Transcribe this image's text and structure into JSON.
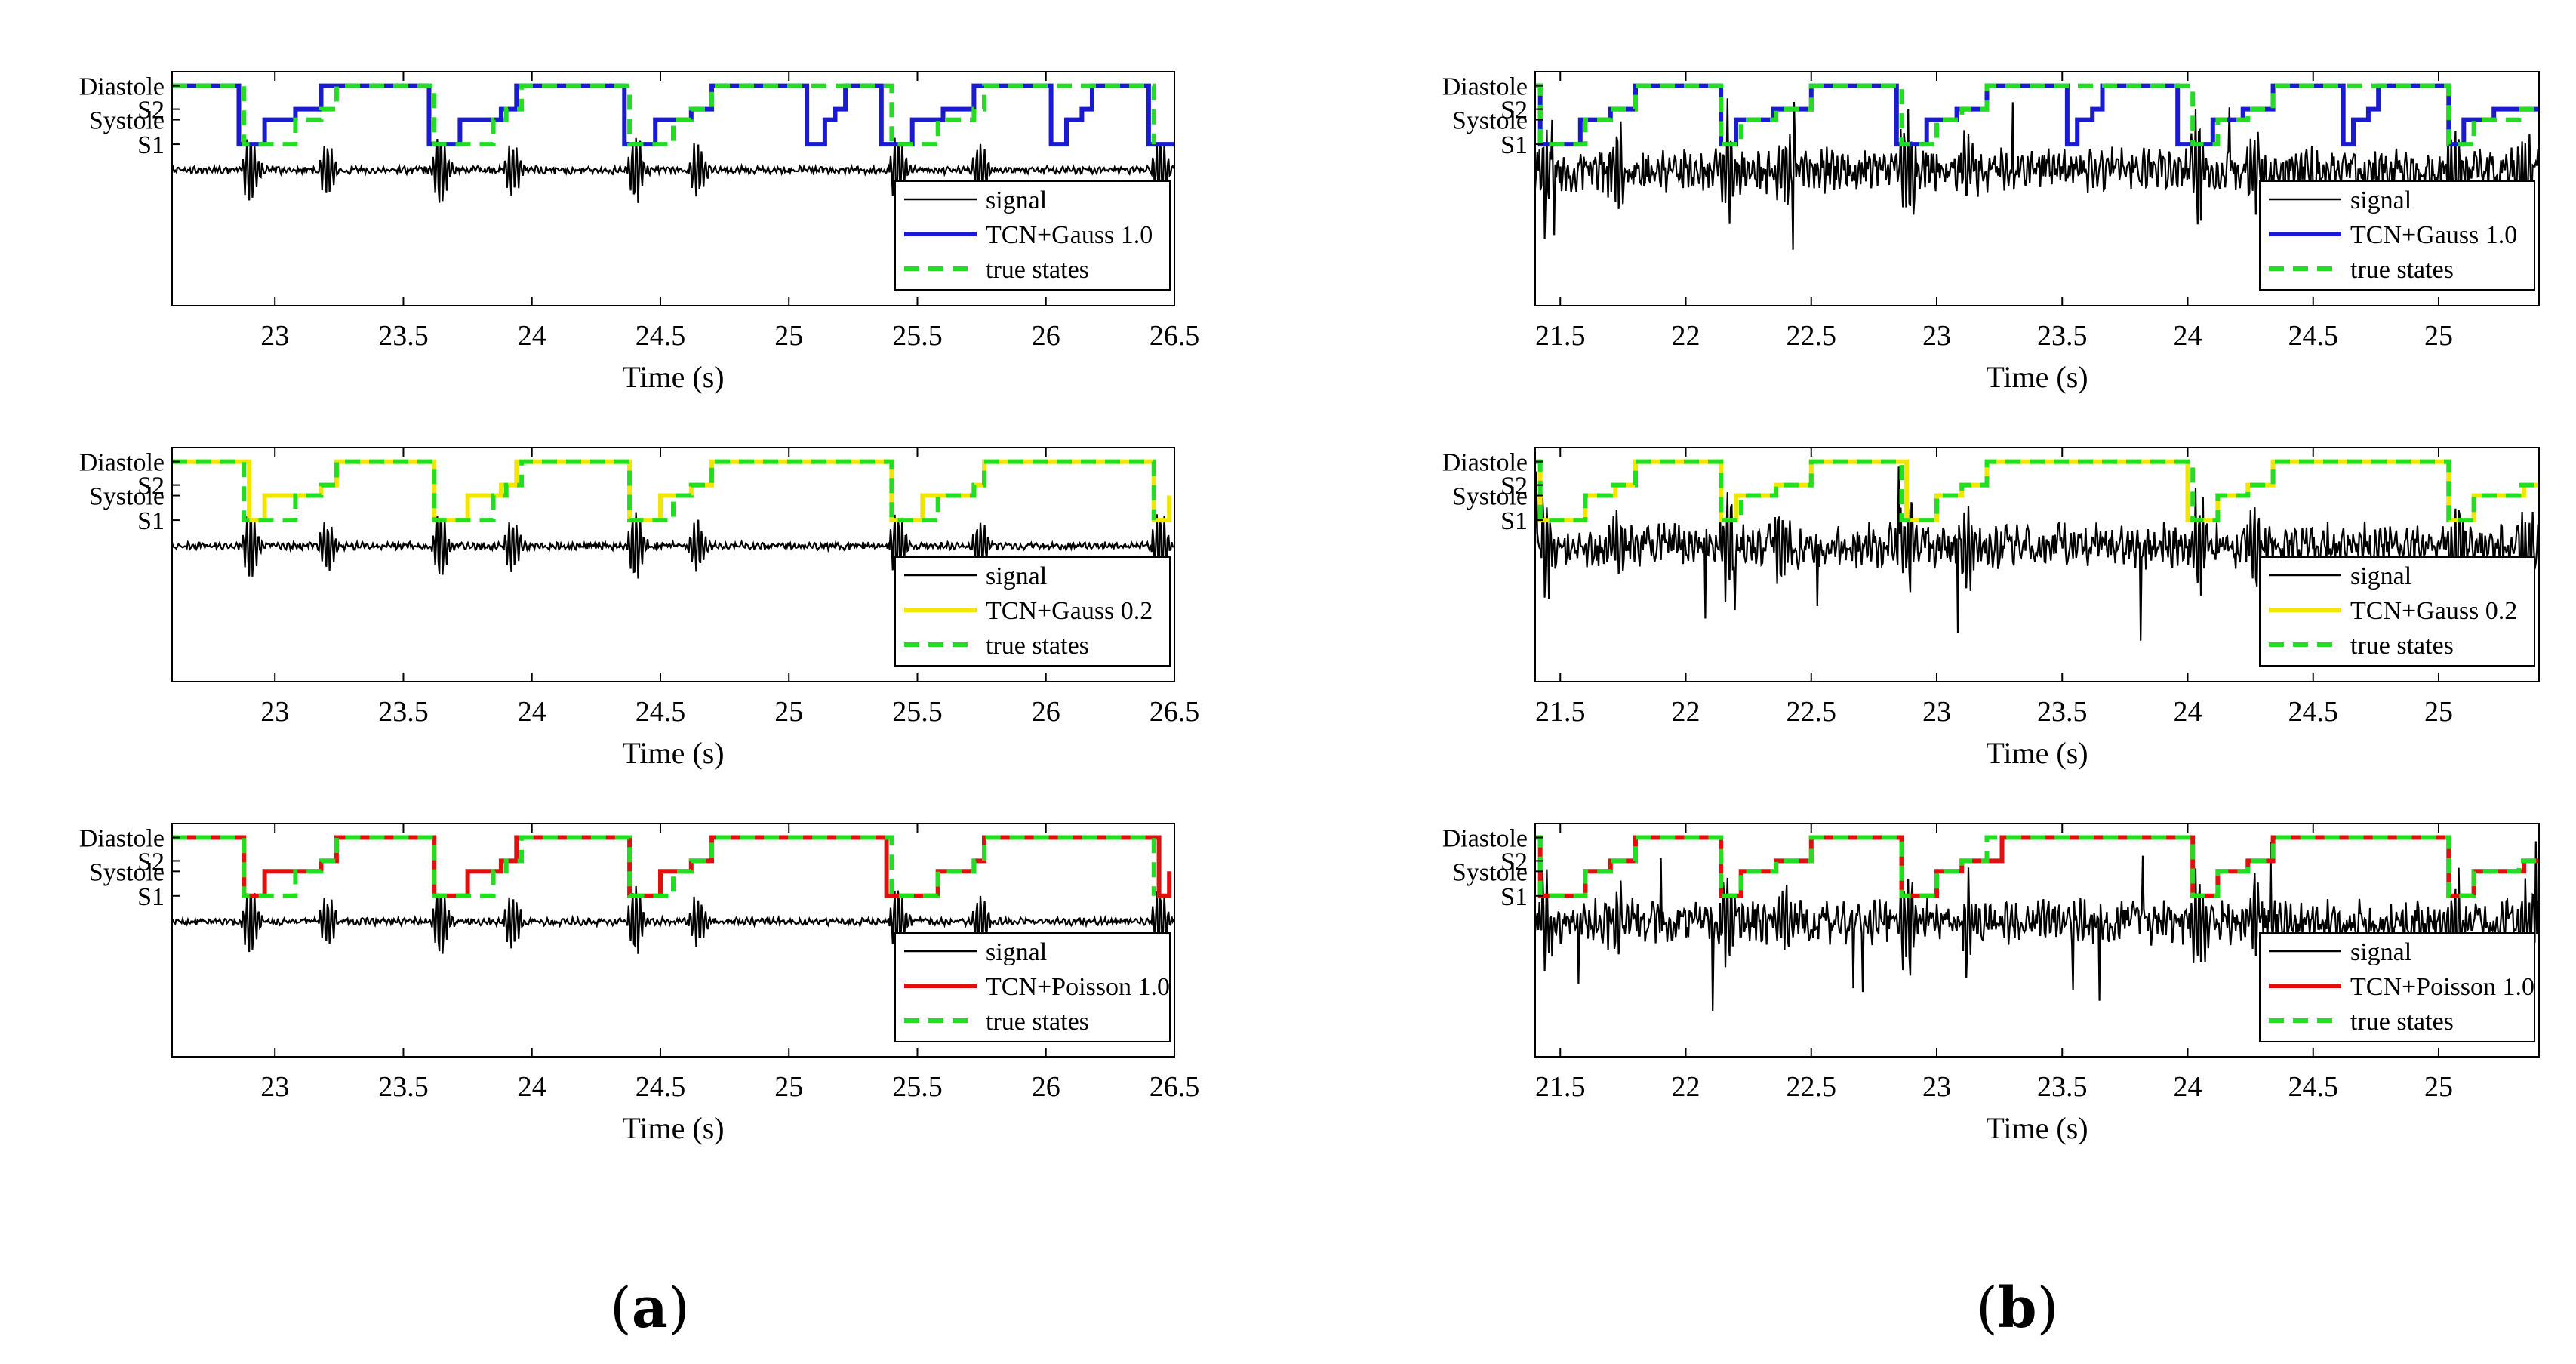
{
  "figure": {
    "panel_labels": [
      {
        "open": "(",
        "letter": "a",
        "close": ")"
      },
      {
        "open": "(",
        "letter": "b",
        "close": ")"
      }
    ]
  },
  "chart_data": [
    {
      "type": "line",
      "panel": "a",
      "row": 1,
      "xlabel": "Time (s)",
      "xlim": [
        22.6,
        26.5
      ],
      "xticks": [
        23,
        23.5,
        24,
        24.5,
        25,
        25.5,
        26,
        26.5
      ],
      "xtick_labels": [
        "23",
        "23.5",
        "24",
        "24.5",
        "25",
        "25.5",
        "26",
        "26.5"
      ],
      "state_labels": [
        "Diastole",
        "S2",
        "Systole",
        "S1"
      ],
      "legend": [
        "signal",
        "TCN+Gauss 1.0",
        "true states"
      ],
      "series": [
        {
          "name": "signal",
          "color": "#000000",
          "amplitude": "low"
        },
        {
          "name": "TCN+Gauss 1.0",
          "color": "#1a1ad0",
          "x": [
            22.6,
            22.84,
            22.86,
            22.96,
            23.08,
            23.18,
            23.24,
            23.57,
            23.6,
            23.72,
            23.88,
            23.94,
            24.0,
            24.33,
            24.36,
            24.48,
            24.62,
            24.7,
            24.74,
            25.03,
            25.07,
            25.14,
            25.18,
            25.22,
            25.34,
            25.36,
            25.48,
            25.6,
            25.72,
            25.76,
            26.02,
            26.08,
            26.14,
            26.18,
            26.24,
            26.36,
            26.4,
            26.5
          ],
          "y": [
            4,
            4,
            1,
            2,
            3,
            4,
            4,
            4,
            1,
            2,
            3,
            4,
            4,
            4,
            1,
            2,
            3,
            4,
            4,
            4,
            1,
            2,
            3,
            4,
            4,
            1,
            2,
            3,
            4,
            4,
            1,
            2,
            3,
            4,
            4,
            4,
            1,
            1
          ]
        },
        {
          "name": "true states",
          "color": "#22dd22",
          "x": [
            22.6,
            22.82,
            22.88,
            23.08,
            23.18,
            23.24,
            23.55,
            23.62,
            23.85,
            23.9,
            23.96,
            24.33,
            24.38,
            24.55,
            24.62,
            24.7,
            25.34,
            25.4,
            25.58,
            25.72,
            25.76,
            26.38,
            26.42
          ],
          "y": [
            4,
            4,
            1,
            2,
            3,
            4,
            4,
            1,
            2,
            3,
            4,
            4,
            1,
            2,
            3,
            4,
            4,
            1,
            2,
            3,
            4,
            4,
            1
          ]
        }
      ]
    },
    {
      "type": "line",
      "panel": "a",
      "row": 2,
      "xlabel": "Time (s)",
      "xlim": [
        22.6,
        26.5
      ],
      "xticks": [
        23,
        23.5,
        24,
        24.5,
        25,
        25.5,
        26,
        26.5
      ],
      "xtick_labels": [
        "23",
        "23.5",
        "24",
        "24.5",
        "25",
        "25.5",
        "26",
        "26.5"
      ],
      "state_labels": [
        "Diastole",
        "S2",
        "Systole",
        "S1"
      ],
      "legend": [
        "signal",
        "TCN+Gauss 0.2",
        "true states"
      ],
      "series": [
        {
          "name": "signal",
          "color": "#000000",
          "amplitude": "low"
        },
        {
          "name": "TCN+Gauss 0.2",
          "color": "#f0e600",
          "x": [
            22.6,
            22.84,
            22.9,
            22.96,
            23.08,
            23.18,
            23.24,
            23.57,
            23.62,
            23.75,
            23.88,
            23.94,
            24.0,
            24.33,
            24.38,
            24.5,
            24.62,
            24.7,
            25.34,
            25.4,
            25.52,
            25.72,
            25.76,
            26.36,
            26.42,
            26.48
          ],
          "y": [
            4,
            4,
            1,
            2,
            2,
            3,
            4,
            4,
            1,
            2,
            3,
            4,
            4,
            4,
            1,
            2,
            3,
            4,
            4,
            1,
            2,
            3,
            4,
            4,
            1,
            2
          ]
        },
        {
          "name": "true states",
          "color": "#22dd22",
          "x": [
            22.6,
            22.82,
            22.88,
            23.08,
            23.18,
            23.24,
            23.55,
            23.62,
            23.85,
            23.9,
            23.96,
            24.33,
            24.38,
            24.55,
            24.62,
            24.7,
            25.34,
            25.4,
            25.58,
            25.72,
            25.76,
            26.38,
            26.42
          ],
          "y": [
            4,
            4,
            1,
            2,
            3,
            4,
            4,
            1,
            2,
            3,
            4,
            4,
            1,
            2,
            3,
            4,
            4,
            1,
            2,
            3,
            4,
            4,
            1
          ]
        }
      ]
    },
    {
      "type": "line",
      "panel": "a",
      "row": 3,
      "xlabel": "Time (s)",
      "xlim": [
        22.6,
        26.5
      ],
      "xticks": [
        23,
        23.5,
        24,
        24.5,
        25,
        25.5,
        26,
        26.5
      ],
      "xtick_labels": [
        "23",
        "23.5",
        "24",
        "24.5",
        "25",
        "25.5",
        "26",
        "26.5"
      ],
      "state_labels": [
        "Diastole",
        "S2",
        "Systole",
        "S1"
      ],
      "legend": [
        "signal",
        "TCN+Poisson 1.0",
        "true states"
      ],
      "series": [
        {
          "name": "signal",
          "color": "#000000",
          "amplitude": "low"
        },
        {
          "name": "TCN+Poisson 1.0",
          "color": "#e01010",
          "x": [
            22.6,
            22.84,
            22.88,
            22.96,
            23.08,
            23.18,
            23.24,
            23.57,
            23.62,
            23.75,
            23.88,
            23.94,
            24.0,
            24.33,
            24.38,
            24.5,
            24.62,
            24.7,
            25.34,
            25.38,
            25.48,
            25.58,
            25.72,
            25.76,
            26.38,
            26.44,
            26.48
          ],
          "y": [
            4,
            4,
            1,
            2,
            2,
            3,
            4,
            4,
            1,
            2,
            3,
            4,
            4,
            4,
            1,
            2,
            3,
            4,
            4,
            1,
            1,
            2,
            3,
            4,
            4,
            1,
            2
          ]
        },
        {
          "name": "true states",
          "color": "#22dd22",
          "x": [
            22.6,
            22.82,
            22.88,
            23.08,
            23.18,
            23.24,
            23.55,
            23.62,
            23.85,
            23.9,
            23.96,
            24.33,
            24.38,
            24.55,
            24.62,
            24.7,
            25.34,
            25.4,
            25.58,
            25.72,
            25.76,
            26.38,
            26.42
          ],
          "y": [
            4,
            4,
            1,
            2,
            3,
            4,
            4,
            1,
            2,
            3,
            4,
            4,
            1,
            2,
            3,
            4,
            4,
            1,
            2,
            3,
            4,
            4,
            1
          ]
        }
      ]
    },
    {
      "type": "line",
      "panel": "b",
      "row": 1,
      "xlabel": "Time (s)",
      "xlim": [
        21.4,
        25.4
      ],
      "xticks": [
        21.5,
        22,
        22.5,
        23,
        23.5,
        24,
        24.5,
        25
      ],
      "xtick_labels": [
        "21.5",
        "22",
        "22.5",
        "23",
        "23.5",
        "24",
        "24.5",
        "25"
      ],
      "state_labels": [
        "Diastole",
        "S2",
        "Systole",
        "S1"
      ],
      "legend": [
        "signal",
        "TCN+Gauss 1.0",
        "true states"
      ],
      "series": [
        {
          "name": "signal",
          "color": "#000000",
          "amplitude": "high"
        },
        {
          "name": "TCN+Gauss 1.0",
          "color": "#1a1ad0",
          "x": [
            21.4,
            21.42,
            21.58,
            21.7,
            21.8,
            21.86,
            22.14,
            22.2,
            22.35,
            22.5,
            22.56,
            22.82,
            22.84,
            22.96,
            23.08,
            23.2,
            23.26,
            23.52,
            23.56,
            23.62,
            23.66,
            23.7,
            23.96,
            23.98,
            24.1,
            24.22,
            24.34,
            24.38,
            24.62,
            24.66,
            24.72,
            24.76,
            24.8,
            25.04,
            25.1,
            25.22,
            25.4
          ],
          "y": [
            4,
            1,
            2,
            3,
            4,
            4,
            1,
            2,
            3,
            4,
            4,
            4,
            1,
            2,
            3,
            4,
            4,
            1,
            2,
            3,
            4,
            4,
            1,
            1,
            2,
            3,
            4,
            4,
            1,
            2,
            3,
            4,
            4,
            1,
            2,
            3,
            3
          ]
        },
        {
          "name": "true states",
          "color": "#22dd22",
          "x": [
            21.4,
            21.42,
            21.6,
            21.7,
            21.8,
            21.86,
            22.14,
            22.22,
            22.36,
            22.5,
            22.56,
            22.82,
            22.86,
            23.0,
            23.1,
            23.2,
            23.26,
            23.98,
            24.02,
            24.12,
            24.24,
            24.34,
            24.38,
            25.0,
            25.04,
            25.14,
            25.32,
            25.4
          ],
          "y": [
            4,
            1,
            2,
            3,
            4,
            4,
            1,
            2,
            3,
            4,
            4,
            4,
            1,
            2,
            3,
            4,
            4,
            4,
            1,
            2,
            3,
            4,
            4,
            4,
            1,
            2,
            3,
            3
          ]
        }
      ]
    },
    {
      "type": "line",
      "panel": "b",
      "row": 2,
      "xlabel": "Time (s)",
      "xlim": [
        21.4,
        25.4
      ],
      "xticks": [
        21.5,
        22,
        22.5,
        23,
        23.5,
        24,
        24.5,
        25
      ],
      "xtick_labels": [
        "21.5",
        "22",
        "22.5",
        "23",
        "23.5",
        "24",
        "24.5",
        "25"
      ],
      "state_labels": [
        "Diastole",
        "S2",
        "Systole",
        "S1"
      ],
      "legend": [
        "signal",
        "TCN+Gauss 0.2",
        "true states"
      ],
      "series": [
        {
          "name": "signal",
          "color": "#000000",
          "amplitude": "high"
        },
        {
          "name": "TCN+Gauss 0.2",
          "color": "#f0e600",
          "x": [
            21.4,
            21.42,
            21.6,
            21.72,
            21.8,
            21.86,
            22.14,
            22.2,
            22.36,
            22.5,
            22.56,
            22.82,
            22.88,
            23.0,
            23.1,
            23.2,
            23.26,
            23.96,
            24.0,
            24.12,
            24.24,
            24.34,
            24.38,
            25.0,
            25.04,
            25.14,
            25.34,
            25.4
          ],
          "y": [
            4,
            1,
            2,
            3,
            4,
            4,
            1,
            2,
            3,
            4,
            4,
            4,
            1,
            2,
            3,
            4,
            4,
            4,
            1,
            2,
            3,
            4,
            4,
            4,
            1,
            2,
            3,
            3
          ]
        },
        {
          "name": "true states",
          "color": "#22dd22",
          "x": [
            21.4,
            21.42,
            21.6,
            21.7,
            21.8,
            21.86,
            22.14,
            22.22,
            22.36,
            22.5,
            22.56,
            22.82,
            22.86,
            23.0,
            23.1,
            23.2,
            23.26,
            23.98,
            24.02,
            24.12,
            24.24,
            24.34,
            24.38,
            25.0,
            25.04,
            25.14,
            25.32,
            25.4
          ],
          "y": [
            4,
            1,
            2,
            3,
            4,
            4,
            1,
            2,
            3,
            4,
            4,
            4,
            1,
            2,
            3,
            4,
            4,
            4,
            1,
            2,
            3,
            4,
            4,
            4,
            1,
            2,
            3,
            3
          ]
        }
      ]
    },
    {
      "type": "line",
      "panel": "b",
      "row": 3,
      "xlabel": "Time (s)",
      "xlim": [
        21.4,
        25.4
      ],
      "xticks": [
        21.5,
        22,
        22.5,
        23,
        23.5,
        24,
        24.5,
        25
      ],
      "xtick_labels": [
        "21.5",
        "22",
        "22.5",
        "23",
        "23.5",
        "24",
        "24.5",
        "25"
      ],
      "state_labels": [
        "Diastole",
        "S2",
        "Systole",
        "S1"
      ],
      "legend": [
        "signal",
        "TCN+Poisson 1.0",
        "true states"
      ],
      "series": [
        {
          "name": "signal",
          "color": "#000000",
          "amplitude": "high"
        },
        {
          "name": "TCN+Poisson 1.0",
          "color": "#e01010",
          "x": [
            21.4,
            21.42,
            21.6,
            21.7,
            21.8,
            21.86,
            22.14,
            22.22,
            22.36,
            22.5,
            22.56,
            22.82,
            22.86,
            22.94,
            23.0,
            23.1,
            23.2,
            23.26,
            23.98,
            24.02,
            24.12,
            24.24,
            24.34,
            24.38,
            25.0,
            25.04,
            25.14,
            25.34,
            25.4
          ],
          "y": [
            4,
            1,
            2,
            3,
            4,
            4,
            1,
            2,
            3,
            4,
            4,
            4,
            1,
            1,
            2,
            3,
            3,
            4,
            4,
            1,
            2,
            3,
            4,
            4,
            4,
            1,
            2,
            3,
            3
          ]
        },
        {
          "name": "true states",
          "color": "#22dd22",
          "x": [
            21.4,
            21.42,
            21.6,
            21.7,
            21.8,
            21.86,
            22.14,
            22.22,
            22.36,
            22.5,
            22.56,
            22.82,
            22.86,
            23.0,
            23.1,
            23.2,
            23.26,
            23.98,
            24.02,
            24.12,
            24.24,
            24.34,
            24.38,
            25.0,
            25.04,
            25.14,
            25.32,
            25.4
          ],
          "y": [
            4,
            1,
            2,
            3,
            4,
            4,
            1,
            2,
            3,
            4,
            4,
            4,
            1,
            2,
            3,
            4,
            4,
            4,
            1,
            2,
            3,
            4,
            4,
            4,
            1,
            2,
            3,
            3
          ]
        }
      ]
    }
  ]
}
